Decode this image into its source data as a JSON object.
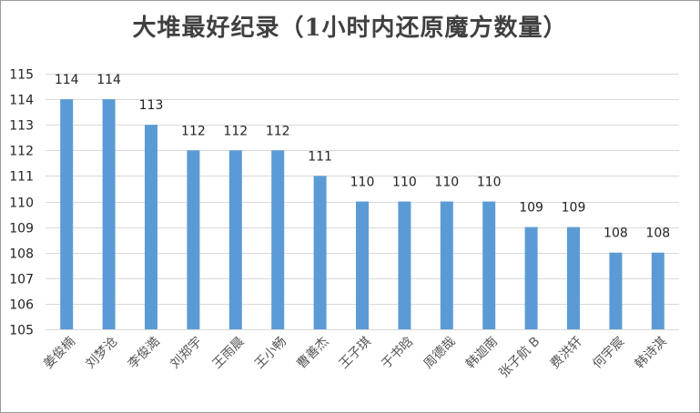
{
  "chart_data": {
    "type": "bar",
    "title": "大堆最好纪录（1小时内还原魔方数量）",
    "categories": [
      "姜俊楠",
      "刘梦沧",
      "李俊澔",
      "刘郑宇",
      "王雨晨",
      "王小畅",
      "曹善杰",
      "王子琪",
      "于书晗",
      "周德哉",
      "韩迦南",
      "张子航 B",
      "费洪轩",
      "何宇宸",
      "韩诗淇"
    ],
    "values": [
      114,
      114,
      113,
      112,
      112,
      112,
      111,
      110,
      110,
      110,
      110,
      109,
      109,
      108,
      108
    ],
    "ylim": [
      105,
      115
    ],
    "yticks": [
      105,
      106,
      107,
      108,
      109,
      110,
      111,
      112,
      113,
      114,
      115
    ],
    "xlabel": "",
    "ylabel": "",
    "grid": true,
    "legend": "none",
    "bar_color": "#5b9bd5"
  }
}
